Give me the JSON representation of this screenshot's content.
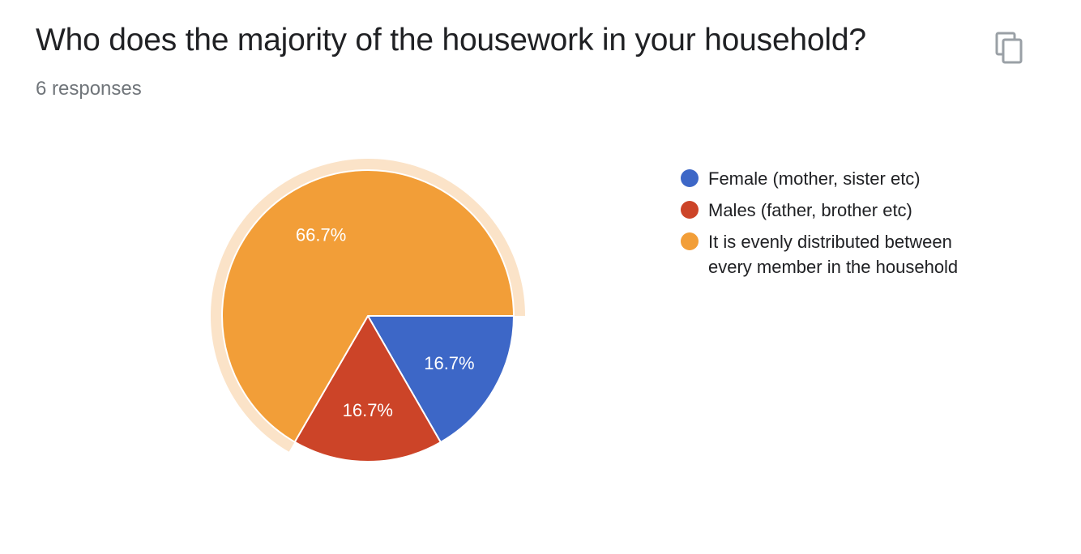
{
  "question": {
    "title": "Who does the majority of the housework in your household?",
    "responses": "6 responses"
  },
  "icons": {
    "copy": "copy-icon"
  },
  "chart_data": {
    "type": "pie",
    "title": "Who does the majority of the housework in your household?",
    "slices": [
      {
        "label": "Female (mother, sister etc)",
        "value": 16.7,
        "display": "16.7%",
        "color": "#3d67c7"
      },
      {
        "label": "Males (father, brother etc)",
        "value": 16.7,
        "display": "16.7%",
        "color": "#cc4428"
      },
      {
        "label": "It is evenly distributed between every member in the household",
        "value": 66.7,
        "display": "66.7%",
        "color": "#f29e38",
        "highlighted": true
      }
    ],
    "highlight_color": "#fbe3c8",
    "legend_position": "right"
  }
}
